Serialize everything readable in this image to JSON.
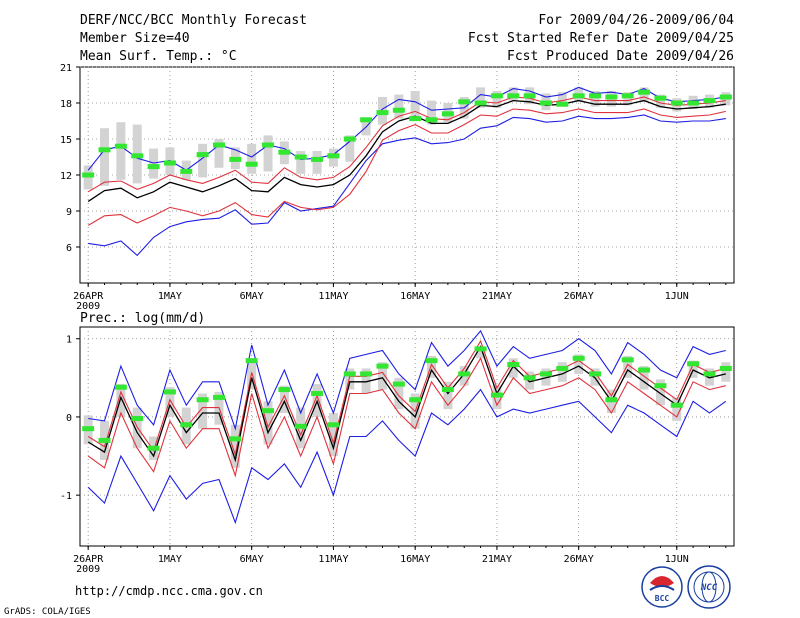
{
  "header": {
    "title": "DERF/NCC/BCC Monthly Forecast",
    "member_size": "Member Size=40",
    "variable": "Mean Surf. Temp.: °C",
    "forecast_range": "For 2009/04/26-2009/06/04",
    "fcst_started": "Fcst Started Refer Date 2009/04/25",
    "fcst_produced": "Fcst Produced Date 2009/04/26"
  },
  "footer": {
    "url": "http://cmdp.ncc.cma.gov.cn",
    "grads": "GrADS: COLA/IGES",
    "logo_bcc": "BCC",
    "logo_ncc": "NCC"
  },
  "colors": {
    "box": "#d3d3d3",
    "median": "#32e632",
    "mean": "#000000",
    "std": "#e0323c",
    "range": "#1e1ee6",
    "grid": "#888888"
  },
  "chart_data": [
    {
      "type": "box-line",
      "title": "Mean Surf. Temp.: °C",
      "ylabel": "°C",
      "x_start": 0,
      "x_count": 40,
      "x_tick_labels": [
        "26APR",
        "1MAY",
        "6MAY",
        "11MAY",
        "16MAY",
        "21MAY",
        "26MAY",
        "1JUN"
      ],
      "x_tick_days": [
        0,
        5,
        10,
        15,
        20,
        25,
        30,
        36
      ],
      "year_label": "2009",
      "ylim": [
        3,
        21
      ],
      "yticks": [
        6,
        9,
        12,
        15,
        18,
        21
      ],
      "grid": true,
      "series": {
        "mean": [
          9.8,
          10.7,
          10.9,
          10.1,
          10.6,
          11.4,
          11.0,
          10.6,
          11.1,
          11.7,
          10.7,
          10.6,
          11.8,
          11.2,
          11.0,
          11.2,
          12.0,
          13.6,
          15.6,
          16.5,
          16.9,
          16.3,
          16.3,
          16.9,
          17.8,
          17.7,
          18.2,
          18.1,
          17.8,
          17.9,
          18.2,
          17.9,
          17.9,
          17.9,
          18.2,
          17.7,
          17.5,
          17.6,
          17.7,
          17.9
        ],
        "std_upper": [
          10.6,
          11.4,
          11.5,
          10.8,
          11.3,
          12.0,
          11.6,
          11.3,
          11.8,
          12.4,
          11.4,
          11.3,
          12.6,
          11.8,
          11.6,
          11.8,
          12.7,
          14.3,
          16.1,
          16.9,
          17.3,
          16.7,
          16.6,
          17.2,
          18.1,
          18.0,
          18.5,
          18.4,
          18.0,
          18.2,
          18.5,
          18.2,
          18.2,
          18.2,
          18.5,
          18.0,
          17.8,
          17.9,
          18.0,
          18.2
        ],
        "std_lower": [
          7.8,
          8.6,
          8.7,
          8.0,
          8.6,
          9.3,
          9.0,
          8.6,
          9.0,
          9.7,
          8.7,
          8.5,
          9.8,
          9.3,
          9.1,
          9.3,
          10.4,
          12.3,
          14.9,
          15.7,
          16.2,
          15.5,
          15.5,
          16.2,
          17.0,
          16.9,
          17.5,
          17.4,
          17.1,
          17.2,
          17.5,
          17.2,
          17.2,
          17.2,
          17.5,
          17.0,
          16.8,
          16.9,
          17.0,
          17.3
        ],
        "max": [
          12.4,
          14.1,
          14.4,
          13.4,
          13.0,
          13.2,
          12.4,
          13.4,
          14.5,
          14.1,
          13.5,
          14.5,
          14.2,
          13.3,
          13.4,
          13.7,
          14.8,
          16.0,
          17.5,
          18.3,
          18.1,
          17.4,
          17.5,
          17.6,
          18.7,
          18.5,
          19.2,
          19.0,
          18.5,
          18.7,
          19.3,
          18.8,
          18.9,
          18.7,
          19.2,
          18.4,
          18.1,
          18.2,
          18.3,
          18.5
        ],
        "min": [
          6.3,
          6.1,
          6.5,
          5.3,
          6.8,
          7.7,
          8.1,
          8.3,
          8.4,
          9.1,
          7.9,
          8.0,
          9.7,
          9.0,
          9.2,
          9.4,
          11.3,
          13.2,
          14.6,
          14.9,
          15.1,
          14.6,
          14.7,
          15.0,
          15.9,
          16.1,
          16.8,
          16.7,
          16.4,
          16.5,
          16.9,
          16.7,
          16.7,
          16.8,
          17.0,
          16.5,
          16.4,
          16.5,
          16.5,
          16.7
        ],
        "median": [
          12.0,
          14.1,
          14.4,
          13.6,
          12.7,
          13.0,
          12.3,
          13.7,
          14.5,
          13.3,
          12.9,
          14.5,
          13.9,
          13.5,
          13.3,
          13.6,
          15.0,
          16.6,
          17.2,
          17.4,
          16.7,
          16.6,
          17.1,
          18.1,
          18.0,
          18.6,
          18.6,
          18.6,
          18.0,
          17.9,
          18.6,
          18.6,
          18.5,
          18.6,
          18.9,
          18.4,
          18.0,
          18.0,
          18.2,
          18.5
        ],
        "box_top": [
          12.8,
          15.9,
          16.4,
          16.2,
          14.2,
          14.3,
          13.2,
          14.6,
          15.0,
          14.3,
          14.6,
          15.3,
          14.8,
          14.0,
          14.0,
          14.2,
          15.3,
          16.8,
          18.5,
          18.7,
          19.0,
          18.2,
          18.0,
          18.5,
          19.3,
          19.0,
          19.3,
          19.3,
          18.8,
          18.9,
          19.3,
          19.0,
          19.0,
          18.9,
          19.3,
          18.7,
          18.4,
          18.6,
          18.7,
          18.9
        ],
        "box_bottom": [
          10.8,
          11.1,
          11.6,
          11.3,
          11.7,
          12.0,
          11.6,
          11.8,
          12.6,
          12.5,
          12.1,
          12.3,
          12.9,
          12.1,
          12.1,
          12.7,
          13.1,
          15.3,
          16.2,
          16.7,
          16.8,
          16.2,
          16.4,
          16.7,
          17.6,
          17.6,
          18.2,
          17.9,
          17.4,
          17.7,
          18.1,
          17.7,
          17.7,
          17.8,
          18.1,
          17.6,
          17.3,
          17.5,
          17.6,
          17.8
        ]
      }
    },
    {
      "type": "box-line",
      "title": "Prec.: log(mm/d)",
      "ylabel": "log(mm/d)",
      "x_start": 0,
      "x_count": 40,
      "x_tick_labels": [
        "26APR",
        "1MAY",
        "6MAY",
        "11MAY",
        "16MAY",
        "21MAY",
        "26MAY",
        "1JUN"
      ],
      "x_tick_days": [
        0,
        5,
        10,
        15,
        20,
        25,
        30,
        36
      ],
      "year_label": "2009",
      "ylim": [
        -1.65,
        1.15
      ],
      "yticks": [
        -1,
        0,
        1
      ],
      "grid": true,
      "series": {
        "mean": [
          -0.32,
          -0.45,
          0.25,
          -0.2,
          -0.5,
          0.15,
          -0.2,
          0.05,
          0.05,
          -0.55,
          0.5,
          -0.2,
          0.2,
          -0.3,
          0.2,
          -0.4,
          0.45,
          0.45,
          0.5,
          0.2,
          0.0,
          0.6,
          0.3,
          0.55,
          0.9,
          0.3,
          0.65,
          0.45,
          0.5,
          0.55,
          0.65,
          0.5,
          0.2,
          0.6,
          0.45,
          0.3,
          0.15,
          0.6,
          0.5,
          0.55
        ],
        "std_upper": [
          -0.25,
          -0.38,
          0.32,
          -0.13,
          -0.43,
          0.22,
          -0.13,
          0.12,
          0.12,
          -0.48,
          0.57,
          -0.13,
          0.27,
          -0.23,
          0.27,
          -0.33,
          0.52,
          0.52,
          0.57,
          0.27,
          0.07,
          0.67,
          0.37,
          0.62,
          0.97,
          0.37,
          0.72,
          0.52,
          0.57,
          0.62,
          0.72,
          0.57,
          0.27,
          0.67,
          0.52,
          0.37,
          0.22,
          0.67,
          0.57,
          0.62
        ],
        "std_lower": [
          -0.5,
          -0.65,
          0.05,
          -0.4,
          -0.7,
          -0.05,
          -0.4,
          -0.15,
          -0.15,
          -0.75,
          0.3,
          -0.4,
          0.0,
          -0.5,
          0.0,
          -0.6,
          0.3,
          0.3,
          0.35,
          0.05,
          -0.15,
          0.45,
          0.15,
          0.4,
          0.75,
          0.15,
          0.5,
          0.3,
          0.35,
          0.4,
          0.5,
          0.35,
          0.05,
          0.45,
          0.3,
          0.15,
          0.0,
          0.45,
          0.35,
          0.4
        ]
      },
      "series_extra": {
        "max": [
          -0.02,
          -0.05,
          0.65,
          0.15,
          -0.1,
          0.6,
          0.15,
          0.45,
          0.45,
          -0.15,
          0.92,
          0.15,
          0.6,
          0.05,
          0.55,
          0.05,
          0.75,
          0.8,
          0.85,
          0.55,
          0.35,
          0.95,
          0.65,
          0.85,
          1.1,
          0.65,
          0.9,
          0.75,
          0.8,
          0.85,
          1.0,
          0.85,
          0.55,
          0.95,
          0.8,
          0.6,
          0.5,
          0.9,
          0.8,
          0.85
        ],
        "min": [
          -0.9,
          -1.1,
          -0.5,
          -0.85,
          -1.2,
          -0.75,
          -1.05,
          -0.85,
          -0.8,
          -1.35,
          -0.65,
          -0.8,
          -0.6,
          -0.9,
          -0.45,
          -1.0,
          -0.25,
          -0.25,
          -0.05,
          -0.3,
          -0.5,
          0.05,
          -0.1,
          0.1,
          0.35,
          0.0,
          0.1,
          0.05,
          0.1,
          0.15,
          0.2,
          0.0,
          -0.2,
          0.15,
          0.05,
          -0.1,
          -0.25,
          0.2,
          0.05,
          0.2
        ],
        "median": [
          -0.15,
          -0.3,
          0.38,
          -0.02,
          -0.4,
          0.32,
          -0.1,
          0.22,
          0.25,
          -0.28,
          0.72,
          0.08,
          0.35,
          -0.12,
          0.3,
          -0.1,
          0.55,
          0.55,
          0.65,
          0.42,
          0.22,
          0.72,
          0.35,
          0.55,
          0.87,
          0.28,
          0.67,
          0.5,
          0.55,
          0.62,
          0.75,
          0.55,
          0.22,
          0.73,
          0.6,
          0.4,
          0.15,
          0.68,
          0.55,
          0.62
        ],
        "box_top": [
          0.02,
          -0.05,
          0.42,
          0.12,
          -0.25,
          0.38,
          0.12,
          0.3,
          0.32,
          -0.1,
          0.75,
          0.2,
          0.4,
          0.12,
          0.42,
          0.05,
          0.62,
          0.62,
          0.7,
          0.5,
          0.3,
          0.78,
          0.45,
          0.65,
          0.9,
          0.4,
          0.75,
          0.58,
          0.62,
          0.7,
          0.8,
          0.62,
          0.35,
          0.78,
          0.65,
          0.48,
          0.25,
          0.72,
          0.62,
          0.7
        ],
        "box_bottom": [
          -0.35,
          -0.55,
          0.0,
          -0.4,
          -0.55,
          0.0,
          -0.35,
          -0.15,
          -0.1,
          -0.65,
          0.35,
          -0.35,
          0.05,
          -0.4,
          0.0,
          -0.5,
          0.35,
          0.3,
          0.35,
          0.1,
          -0.15,
          0.5,
          0.1,
          0.4,
          0.75,
          0.1,
          0.5,
          0.35,
          0.4,
          0.45,
          0.55,
          0.4,
          0.05,
          0.5,
          0.35,
          0.15,
          -0.05,
          0.5,
          0.4,
          0.45
        ]
      }
    }
  ]
}
